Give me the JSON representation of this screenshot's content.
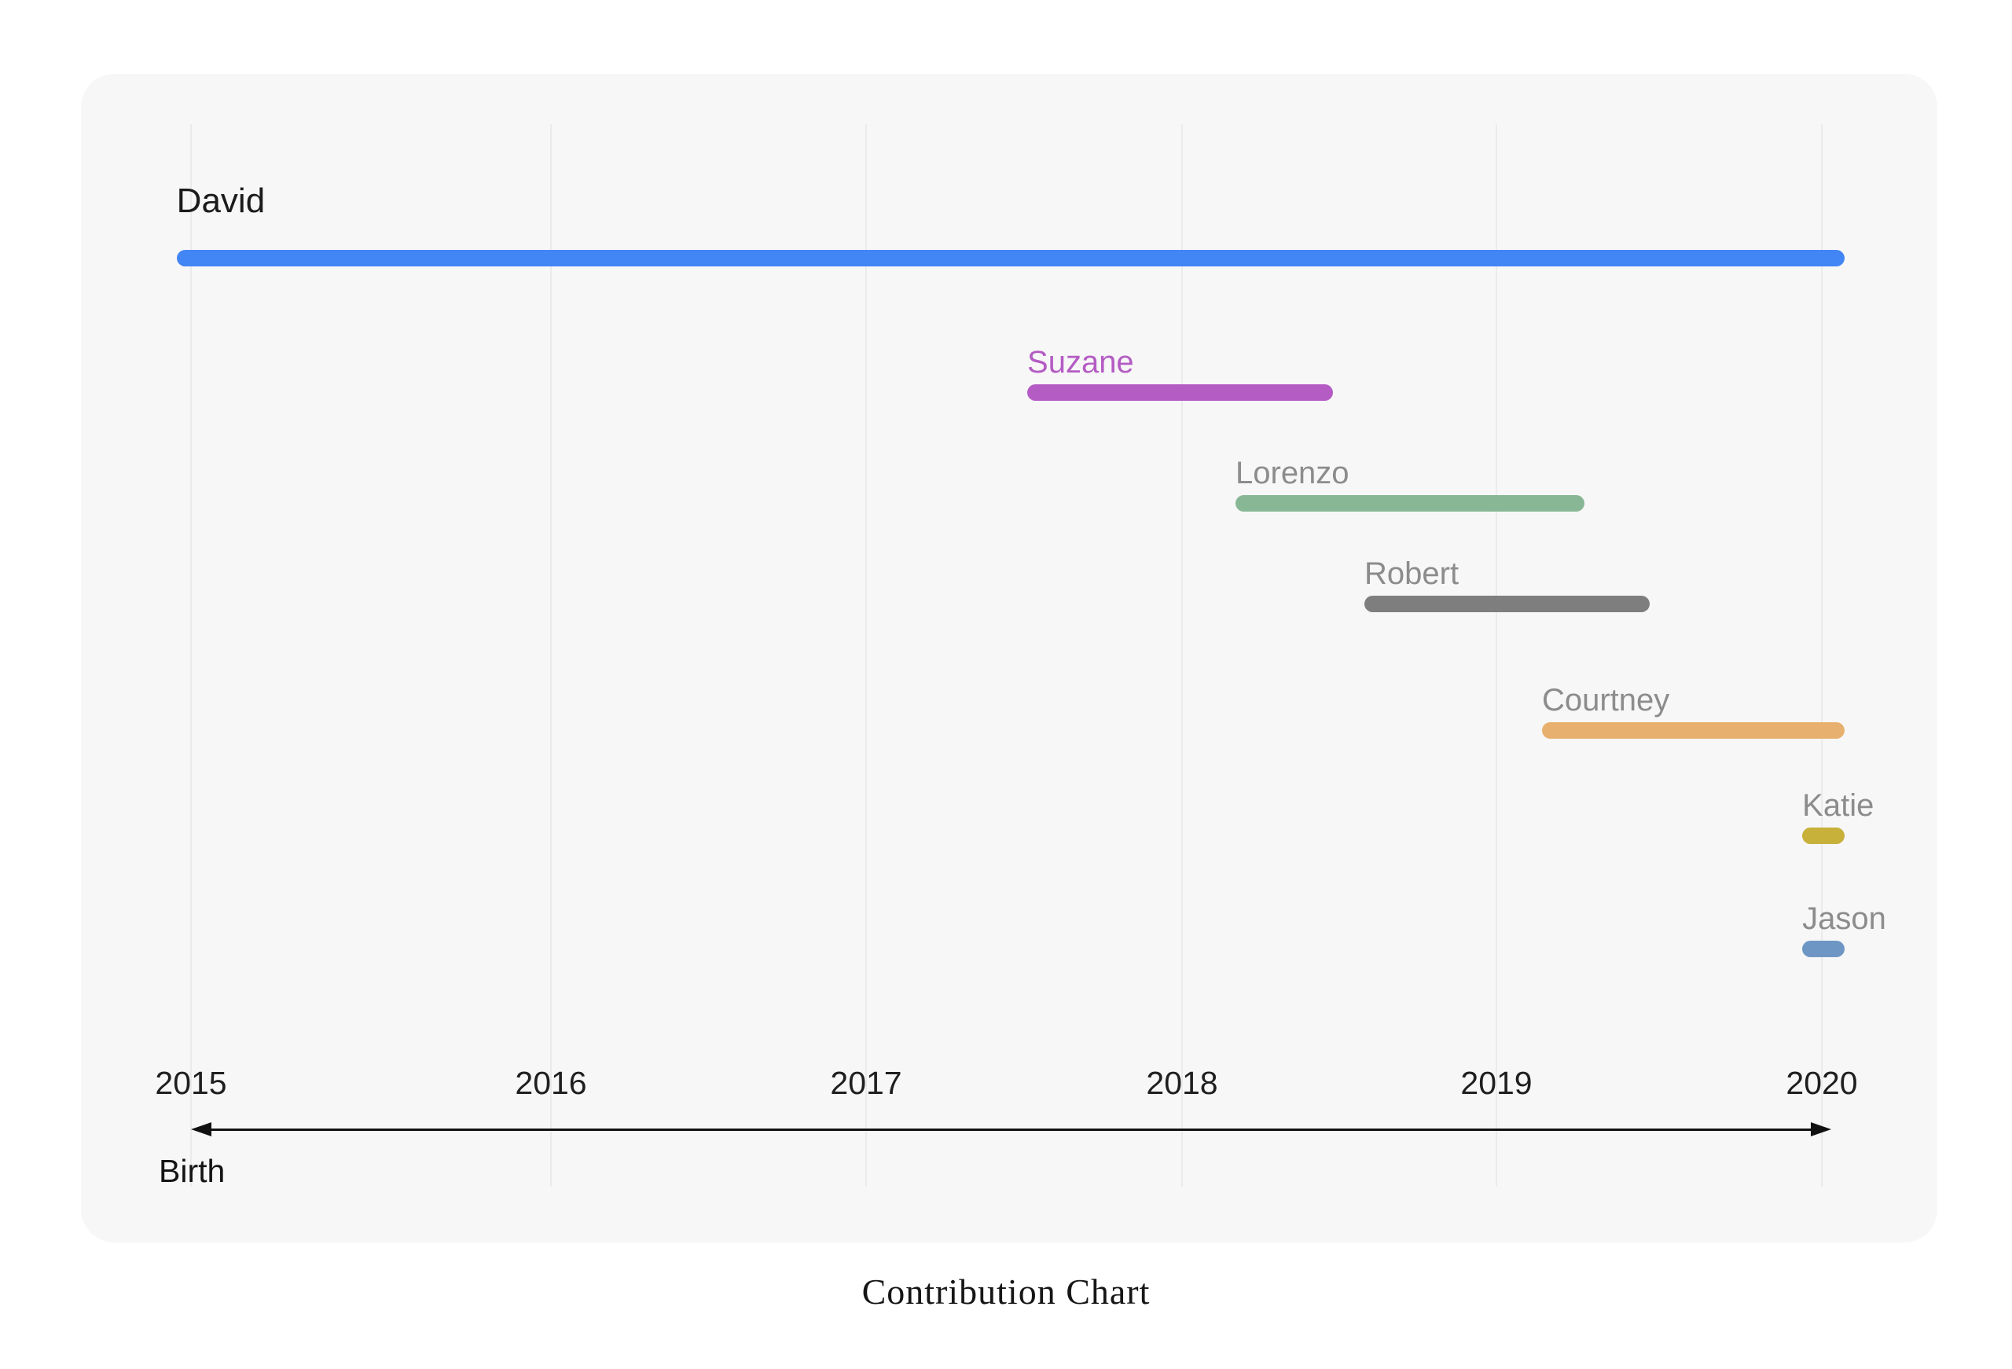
{
  "page": {
    "background": "#ffffff",
    "card_background": "#f7f7f7",
    "gridline_color": "#ebebeb",
    "axis_color": "#111111"
  },
  "title": {
    "text": "Contribution Chart"
  },
  "axis": {
    "label": "Birth"
  },
  "chart_data": {
    "type": "bar",
    "subtype": "gantt-timeline",
    "title": "Contribution Chart",
    "xlabel": "Birth",
    "x_ticks": [
      2015,
      2016,
      2017,
      2018,
      2019,
      2020
    ],
    "xlim": [
      2014.95,
      2020.35
    ],
    "grid": true,
    "legend_position": "none",
    "axis_style": "double-headed-arrow",
    "series": [
      {
        "name": "David",
        "start": 2014.96,
        "end": 2020.07,
        "color": "#4285F4",
        "label_color": "#1b1b1b"
      },
      {
        "name": "Suzane",
        "start": 2017.51,
        "end": 2018.48,
        "color": "#B45CC4",
        "label_color": "#B45CC4"
      },
      {
        "name": "Lorenzo",
        "start": 2018.17,
        "end": 2019.27,
        "color": "#87B795",
        "label_color": "#8c8c8c"
      },
      {
        "name": "Robert",
        "start": 2018.58,
        "end": 2019.47,
        "color": "#7E7E7E",
        "label_color": "#8c8c8c"
      },
      {
        "name": "Courtney",
        "start": 2019.14,
        "end": 2020.07,
        "color": "#E8B06E",
        "label_color": "#8c8c8c"
      },
      {
        "name": "Katie",
        "start": 2019.94,
        "end": 2020.07,
        "color": "#C8B13B",
        "label_color": "#8c8c8c"
      },
      {
        "name": "Jason",
        "start": 2019.94,
        "end": 2020.07,
        "color": "#6E96C4",
        "label_color": "#8c8c8c"
      }
    ]
  }
}
